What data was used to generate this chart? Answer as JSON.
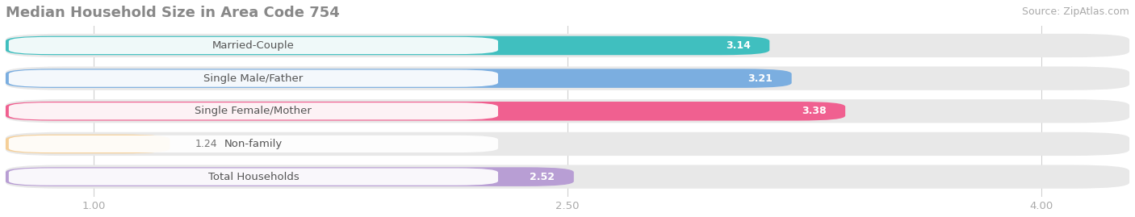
{
  "title": "Median Household Size in Area Code 754",
  "source": "Source: ZipAtlas.com",
  "categories": [
    "Married-Couple",
    "Single Male/Father",
    "Single Female/Mother",
    "Non-family",
    "Total Households"
  ],
  "values": [
    3.14,
    3.21,
    3.38,
    1.24,
    2.52
  ],
  "bar_colors": [
    "#40bfbf",
    "#7baee0",
    "#f06090",
    "#f5cf98",
    "#b89ed4"
  ],
  "value_labels": [
    "3.14",
    "3.21",
    "3.38",
    "1.24",
    "2.52"
  ],
  "xmin": 1.0,
  "xmax": 4.0,
  "xlim_left": 0.72,
  "xlim_right": 4.28,
  "xticks": [
    1.0,
    2.5,
    4.0
  ],
  "xticklabels": [
    "1.00",
    "2.50",
    "4.00"
  ],
  "background_color": "#ffffff",
  "bar_bg_color": "#e8e8e8",
  "label_pill_color": "#ffffff",
  "title_fontsize": 13,
  "source_fontsize": 9,
  "label_fontsize": 9.5,
  "value_fontsize": 9,
  "bar_height": 0.58,
  "bg_bar_height": 0.72
}
